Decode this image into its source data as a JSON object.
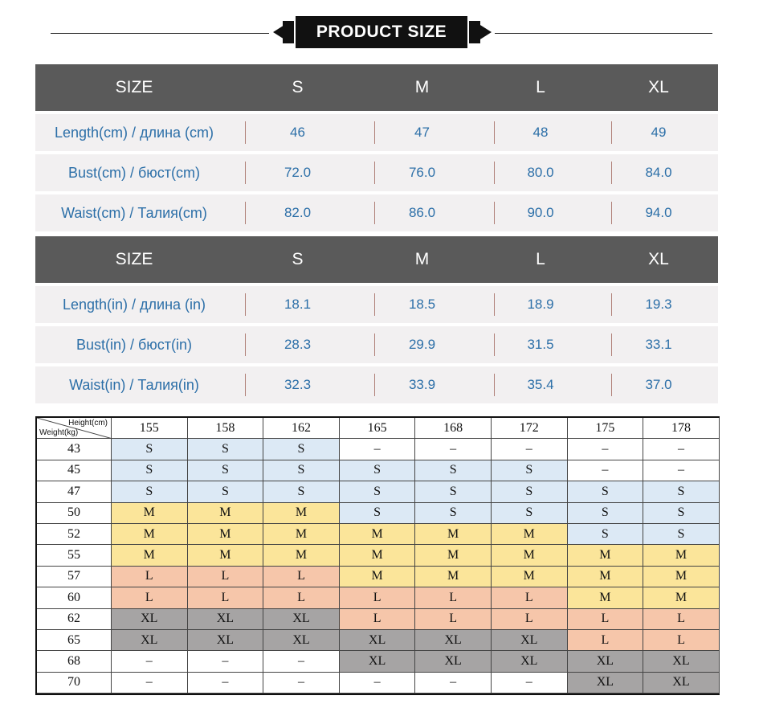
{
  "banner": {
    "title": "PRODUCT SIZE"
  },
  "cm_table": {
    "header": [
      "SIZE",
      "S",
      "M",
      "L",
      "XL"
    ],
    "rows": [
      {
        "label": "Length(cm) / длина (cm)",
        "values": [
          "46",
          "47",
          "48",
          "49"
        ]
      },
      {
        "label": "Bust(cm) / бюст(cm)",
        "values": [
          "72.0",
          "76.0",
          "80.0",
          "84.0"
        ]
      },
      {
        "label": "Waist(cm) / Талия(cm)",
        "values": [
          "82.0",
          "86.0",
          "90.0",
          "94.0"
        ]
      }
    ]
  },
  "in_table": {
    "header": [
      "SIZE",
      "S",
      "M",
      "L",
      "XL"
    ],
    "rows": [
      {
        "label": "Length(in) / длина (in)",
        "values": [
          "18.1",
          "18.5",
          "18.9",
          "19.3"
        ]
      },
      {
        "label": "Bust(in) / бюст(in)",
        "values": [
          "28.3",
          "29.9",
          "31.5",
          "33.1"
        ]
      },
      {
        "label": "Waist(in) / Талия(in)",
        "values": [
          "32.3",
          "33.9",
          "35.4",
          "37.0"
        ]
      }
    ]
  },
  "size_grid": {
    "corner_height": "Height(cm)",
    "corner_weight": "Weight(kg)",
    "heights": [
      "155",
      "158",
      "162",
      "165",
      "168",
      "172",
      "175",
      "178"
    ],
    "rows": [
      {
        "weight": "43",
        "sizes": [
          "S",
          "S",
          "S",
          "–",
          "–",
          "–",
          "–",
          "–"
        ]
      },
      {
        "weight": "45",
        "sizes": [
          "S",
          "S",
          "S",
          "S",
          "S",
          "S",
          "–",
          "–"
        ]
      },
      {
        "weight": "47",
        "sizes": [
          "S",
          "S",
          "S",
          "S",
          "S",
          "S",
          "S",
          "S"
        ]
      },
      {
        "weight": "50",
        "sizes": [
          "M",
          "M",
          "M",
          "S",
          "S",
          "S",
          "S",
          "S"
        ]
      },
      {
        "weight": "52",
        "sizes": [
          "M",
          "M",
          "M",
          "M",
          "M",
          "M",
          "S",
          "S"
        ]
      },
      {
        "weight": "55",
        "sizes": [
          "M",
          "M",
          "M",
          "M",
          "M",
          "M",
          "M",
          "M"
        ]
      },
      {
        "weight": "57",
        "sizes": [
          "L",
          "L",
          "L",
          "M",
          "M",
          "M",
          "M",
          "M"
        ]
      },
      {
        "weight": "60",
        "sizes": [
          "L",
          "L",
          "L",
          "L",
          "L",
          "L",
          "M",
          "M"
        ]
      },
      {
        "weight": "62",
        "sizes": [
          "XL",
          "XL",
          "XL",
          "L",
          "L",
          "L",
          "L",
          "L"
        ]
      },
      {
        "weight": "65",
        "sizes": [
          "XL",
          "XL",
          "XL",
          "XL",
          "XL",
          "XL",
          "L",
          "L"
        ]
      },
      {
        "weight": "68",
        "sizes": [
          "–",
          "–",
          "–",
          "XL",
          "XL",
          "XL",
          "XL",
          "XL"
        ]
      },
      {
        "weight": "70",
        "sizes": [
          "–",
          "–",
          "–",
          "–",
          "–",
          "–",
          "XL",
          "XL"
        ]
      }
    ],
    "colors": {
      "S": "#dce9f5",
      "M": "#fbe59a",
      "L": "#f6c6aa",
      "XL": "#a6a4a4",
      "empty": "#ffffff"
    }
  }
}
